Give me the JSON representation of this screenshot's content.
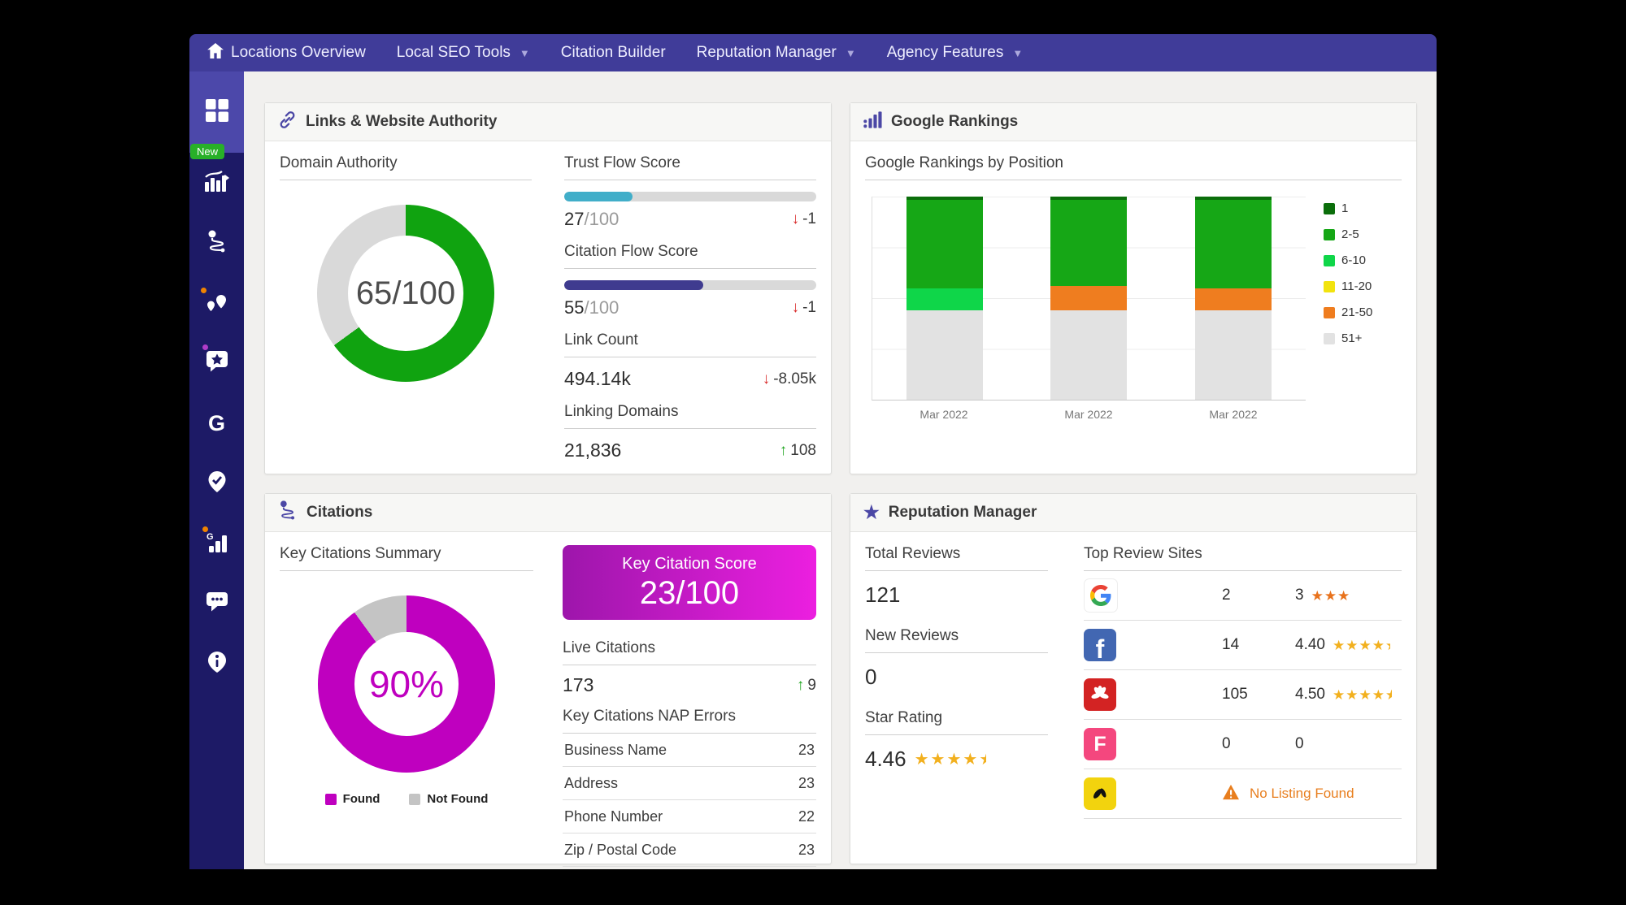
{
  "theme": {
    "nav_bg": "#403c99",
    "sidebar_bg": "#1d1a66",
    "accent": "#4b47a5",
    "content_bg": "#f1f0ee"
  },
  "nav": {
    "items": [
      {
        "label": "Locations Overview",
        "caret": false
      },
      {
        "label": "Local SEO Tools",
        "caret": true
      },
      {
        "label": "Citation Builder",
        "caret": false
      },
      {
        "label": "Reputation Manager",
        "caret": true
      },
      {
        "label": "Agency Features",
        "caret": true
      }
    ]
  },
  "sidebar": {
    "new_badge": "New"
  },
  "links_panel": {
    "title": "Links & Website Authority",
    "domain_authority": {
      "label": "Domain Authority",
      "value": "65",
      "suffix": "/100",
      "percent": 65,
      "color": "#10a310",
      "track": "#d9d9d9"
    },
    "trust_flow": {
      "label": "Trust Flow Score",
      "value": "27",
      "suffix": "/100",
      "percent": 27,
      "color": "#41aec9",
      "delta": "-1",
      "delta_dir": "down"
    },
    "citation_flow": {
      "label": "Citation Flow Score",
      "value": "55",
      "suffix": "/100",
      "percent": 55,
      "color": "#3f3b8f",
      "delta": "-1",
      "delta_dir": "down"
    },
    "link_count": {
      "label": "Link Count",
      "value": "494.14k",
      "delta": "-8.05k",
      "delta_dir": "down"
    },
    "linking_domains": {
      "label": "Linking Domains",
      "value": "21,836",
      "delta": "108",
      "delta_dir": "up"
    }
  },
  "rankings_panel": {
    "title": "Google Rankings",
    "subtitle": "Google Rankings by Position",
    "bars": [
      {
        "x": "Mar 2022",
        "segments": [
          {
            "key": "1",
            "pct": 1.5
          },
          {
            "key": "2-5",
            "pct": 43.5
          },
          {
            "key": "6-10",
            "pct": 11
          },
          {
            "key": "51+",
            "pct": 44
          }
        ]
      },
      {
        "x": "Mar 2022",
        "segments": [
          {
            "key": "1",
            "pct": 1.5
          },
          {
            "key": "2-5",
            "pct": 42.5
          },
          {
            "key": "21-50",
            "pct": 12
          },
          {
            "key": "51+",
            "pct": 44
          }
        ]
      },
      {
        "x": "Mar 2022",
        "segments": [
          {
            "key": "1",
            "pct": 1.5
          },
          {
            "key": "2-5",
            "pct": 43.5
          },
          {
            "key": "21-50",
            "pct": 11
          },
          {
            "key": "51+",
            "pct": 44
          }
        ]
      }
    ],
    "legend": [
      {
        "label": "1",
        "color": "#0b6e0b"
      },
      {
        "label": "2-5",
        "color": "#16a716"
      },
      {
        "label": "6-10",
        "color": "#0fd649"
      },
      {
        "label": "11-20",
        "color": "#f2e30e"
      },
      {
        "label": "21-50",
        "color": "#ef7d1f"
      },
      {
        "label": "51+",
        "color": "#e2e2e2"
      }
    ]
  },
  "citations_panel": {
    "title": "Citations",
    "summary": {
      "label": "Key Citations Summary",
      "center_text": "90%",
      "found_pct": 90,
      "color": "#bf00bf",
      "track": "#c4c4c4",
      "legend": [
        {
          "label": "Found",
          "color": "#bf00bf"
        },
        {
          "label": "Not Found",
          "color": "#c4c4c4"
        }
      ]
    },
    "score": {
      "label": "Key Citation Score",
      "value": "23/100"
    },
    "live": {
      "label": "Live Citations",
      "value": "173",
      "delta": "9",
      "delta_dir": "up"
    },
    "nap": {
      "label": "Key Citations NAP Errors",
      "rows": [
        [
          "Business Name",
          "23"
        ],
        [
          "Address",
          "23"
        ],
        [
          "Phone Number",
          "22"
        ],
        [
          "Zip / Postal Code",
          "23"
        ]
      ]
    }
  },
  "reputation_panel": {
    "title": "Reputation Manager",
    "total_reviews": {
      "label": "Total Reviews",
      "value": "121"
    },
    "new_reviews": {
      "label": "New Reviews",
      "value": "0"
    },
    "star_rating": {
      "label": "Star Rating",
      "value": "4.46",
      "stars": 5,
      "stars_pct": 89,
      "star_color": "#f2b01e"
    },
    "top_sites": {
      "label": "Top Review Sites",
      "rows": [
        {
          "site": "google",
          "count": "2",
          "rating": "3",
          "stars": 3,
          "stars_pct": 100,
          "star_color": "#e8721c"
        },
        {
          "site": "facebook",
          "count": "14",
          "rating": "4.40",
          "stars": 5,
          "stars_pct": 88,
          "star_color": "#f2b01e"
        },
        {
          "site": "yelp",
          "count": "105",
          "rating": "4.50",
          "stars": 5,
          "stars_pct": 90,
          "star_color": "#f2b01e"
        },
        {
          "site": "foursquare",
          "count": "0",
          "rating": "0",
          "stars": 0
        },
        {
          "site": "yellowpages",
          "warning": "No Listing Found"
        }
      ]
    }
  },
  "chart_data": [
    {
      "type": "donut",
      "title": "Domain Authority",
      "center_text": "65/100",
      "values": [
        {
          "label": "score",
          "value": 65
        },
        {
          "label": "remainder",
          "value": 35
        }
      ]
    },
    {
      "type": "bar",
      "stacked": true,
      "title": "Google Rankings by Position",
      "legend_position": "right",
      "grid": true,
      "categories": [
        "Mar 2022",
        "Mar 2022",
        "Mar 2022"
      ],
      "series": [
        {
          "name": "1",
          "values": [
            1.5,
            1.5,
            1.5
          ]
        },
        {
          "name": "2-5",
          "values": [
            43.5,
            42.5,
            43.5
          ]
        },
        {
          "name": "6-10",
          "values": [
            11,
            0,
            0
          ]
        },
        {
          "name": "11-20",
          "values": [
            0,
            0,
            0
          ]
        },
        {
          "name": "21-50",
          "values": [
            0,
            12,
            11
          ]
        },
        {
          "name": "51+",
          "values": [
            44,
            44,
            44
          ]
        }
      ],
      "ylim": [
        0,
        100
      ]
    },
    {
      "type": "donut",
      "title": "Key Citations Summary",
      "center_text": "90%",
      "values": [
        {
          "label": "Found",
          "value": 90
        },
        {
          "label": "Not Found",
          "value": 10
        }
      ]
    }
  ]
}
